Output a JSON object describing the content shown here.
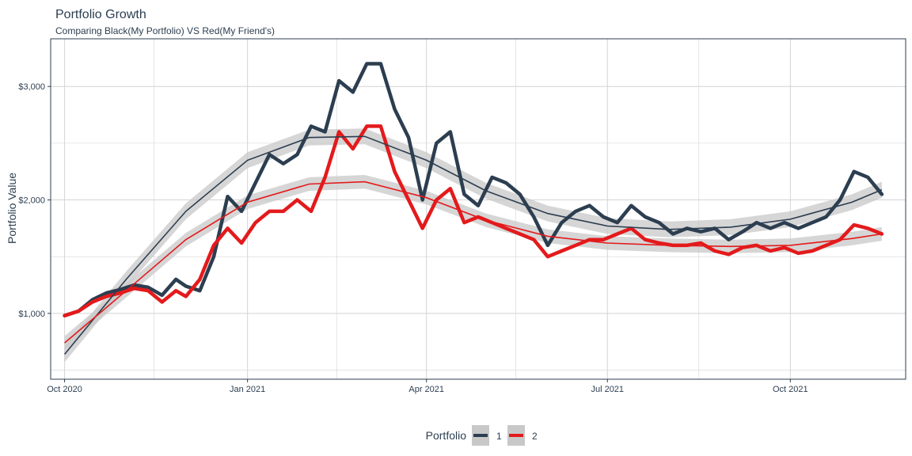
{
  "chart_data": {
    "type": "line",
    "title": "Portfolio Growth",
    "subtitle": "Comparing Black(My Portfolio) VS Red(My Friend's)",
    "xlabel": "",
    "ylabel": "Portfolio Value",
    "x_ticks": [
      "Oct 2020",
      "Jan 2021",
      "Apr 2021",
      "Jul 2021",
      "Oct 2021"
    ],
    "y_ticks": [
      {
        "value": 1000,
        "label": "$1,000"
      },
      {
        "value": 2000,
        "label": "$2,000"
      },
      {
        "value": 3000,
        "label": "$3,000"
      }
    ],
    "ylim": [
      420,
      3420
    ],
    "xlim": [
      "2020-09-24",
      "2021-11-28"
    ],
    "grid": true,
    "legend": {
      "title": "Portfolio",
      "position": "bottom",
      "entries": [
        "1",
        "2"
      ]
    },
    "colors": {
      "series1": "#2c3e50",
      "series2": "#e31a1c",
      "ribbon": "#c8c8c8",
      "grid": "#d4d4d4",
      "border": "#2c3e50"
    },
    "series": [
      {
        "name": "1",
        "values": [
          [
            "2020-10-01",
            980
          ],
          [
            "2020-10-08",
            1020
          ],
          [
            "2020-10-15",
            1120
          ],
          [
            "2020-10-22",
            1180
          ],
          [
            "2020-10-29",
            1210
          ],
          [
            "2020-11-05",
            1250
          ],
          [
            "2020-11-12",
            1230
          ],
          [
            "2020-11-19",
            1160
          ],
          [
            "2020-11-26",
            1300
          ],
          [
            "2020-12-01",
            1240
          ],
          [
            "2020-12-08",
            1200
          ],
          [
            "2020-12-15",
            1500
          ],
          [
            "2020-12-22",
            2030
          ],
          [
            "2020-12-29",
            1900
          ],
          [
            "2021-01-05",
            2150
          ],
          [
            "2021-01-12",
            2400
          ],
          [
            "2021-01-19",
            2320
          ],
          [
            "2021-01-26",
            2400
          ],
          [
            "2021-02-02",
            2650
          ],
          [
            "2021-02-09",
            2600
          ],
          [
            "2021-02-16",
            3050
          ],
          [
            "2021-02-23",
            2950
          ],
          [
            "2021-03-02",
            3200
          ],
          [
            "2021-03-09",
            3200
          ],
          [
            "2021-03-16",
            2800
          ],
          [
            "2021-03-23",
            2550
          ],
          [
            "2021-03-30",
            2000
          ],
          [
            "2021-04-06",
            2500
          ],
          [
            "2021-04-13",
            2600
          ],
          [
            "2021-04-20",
            2050
          ],
          [
            "2021-04-27",
            1950
          ],
          [
            "2021-05-04",
            2200
          ],
          [
            "2021-05-11",
            2150
          ],
          [
            "2021-05-18",
            2050
          ],
          [
            "2021-05-25",
            1850
          ],
          [
            "2021-06-01",
            1600
          ],
          [
            "2021-06-08",
            1800
          ],
          [
            "2021-06-15",
            1900
          ],
          [
            "2021-06-22",
            1950
          ],
          [
            "2021-06-29",
            1850
          ],
          [
            "2021-07-06",
            1800
          ],
          [
            "2021-07-13",
            1950
          ],
          [
            "2021-07-20",
            1850
          ],
          [
            "2021-07-27",
            1800
          ],
          [
            "2021-08-03",
            1700
          ],
          [
            "2021-08-10",
            1750
          ],
          [
            "2021-08-17",
            1720
          ],
          [
            "2021-08-24",
            1750
          ],
          [
            "2021-08-31",
            1650
          ],
          [
            "2021-09-07",
            1720
          ],
          [
            "2021-09-14",
            1800
          ],
          [
            "2021-09-21",
            1750
          ],
          [
            "2021-09-28",
            1800
          ],
          [
            "2021-10-05",
            1750
          ],
          [
            "2021-10-12",
            1800
          ],
          [
            "2021-10-19",
            1850
          ],
          [
            "2021-10-26",
            2000
          ],
          [
            "2021-11-02",
            2250
          ],
          [
            "2021-11-09",
            2200
          ],
          [
            "2021-11-16",
            2050
          ]
        ]
      },
      {
        "name": "2",
        "values": [
          [
            "2020-10-01",
            980
          ],
          [
            "2020-10-08",
            1020
          ],
          [
            "2020-10-15",
            1100
          ],
          [
            "2020-10-22",
            1150
          ],
          [
            "2020-10-29",
            1180
          ],
          [
            "2020-11-05",
            1220
          ],
          [
            "2020-11-12",
            1200
          ],
          [
            "2020-11-19",
            1100
          ],
          [
            "2020-11-26",
            1200
          ],
          [
            "2020-12-01",
            1150
          ],
          [
            "2020-12-08",
            1300
          ],
          [
            "2020-12-15",
            1600
          ],
          [
            "2020-12-22",
            1750
          ],
          [
            "2020-12-29",
            1620
          ],
          [
            "2021-01-05",
            1800
          ],
          [
            "2021-01-12",
            1900
          ],
          [
            "2021-01-19",
            1900
          ],
          [
            "2021-01-26",
            2000
          ],
          [
            "2021-02-02",
            1900
          ],
          [
            "2021-02-09",
            2200
          ],
          [
            "2021-02-16",
            2600
          ],
          [
            "2021-02-23",
            2450
          ],
          [
            "2021-03-02",
            2650
          ],
          [
            "2021-03-09",
            2650
          ],
          [
            "2021-03-16",
            2250
          ],
          [
            "2021-03-23",
            2000
          ],
          [
            "2021-03-30",
            1750
          ],
          [
            "2021-04-06",
            2000
          ],
          [
            "2021-04-13",
            2100
          ],
          [
            "2021-04-20",
            1800
          ],
          [
            "2021-04-27",
            1850
          ],
          [
            "2021-05-04",
            1800
          ],
          [
            "2021-05-11",
            1750
          ],
          [
            "2021-05-18",
            1700
          ],
          [
            "2021-05-25",
            1650
          ],
          [
            "2021-06-01",
            1500
          ],
          [
            "2021-06-08",
            1550
          ],
          [
            "2021-06-15",
            1600
          ],
          [
            "2021-06-22",
            1650
          ],
          [
            "2021-06-29",
            1650
          ],
          [
            "2021-07-06",
            1700
          ],
          [
            "2021-07-13",
            1750
          ],
          [
            "2021-07-20",
            1650
          ],
          [
            "2021-07-27",
            1620
          ],
          [
            "2021-08-03",
            1600
          ],
          [
            "2021-08-10",
            1600
          ],
          [
            "2021-08-17",
            1620
          ],
          [
            "2021-08-24",
            1550
          ],
          [
            "2021-08-31",
            1520
          ],
          [
            "2021-09-07",
            1580
          ],
          [
            "2021-09-14",
            1600
          ],
          [
            "2021-09-21",
            1550
          ],
          [
            "2021-09-28",
            1580
          ],
          [
            "2021-10-05",
            1530
          ],
          [
            "2021-10-12",
            1550
          ],
          [
            "2021-10-19",
            1600
          ],
          [
            "2021-10-26",
            1650
          ],
          [
            "2021-11-02",
            1780
          ],
          [
            "2021-11-09",
            1750
          ],
          [
            "2021-11-16",
            1700
          ]
        ]
      }
    ],
    "smooth": [
      {
        "name": "1",
        "values": [
          [
            "2020-10-01",
            640
          ],
          [
            "2020-11-01",
            1300
          ],
          [
            "2020-12-01",
            1900
          ],
          [
            "2021-01-01",
            2350
          ],
          [
            "2021-02-01",
            2550
          ],
          [
            "2021-03-01",
            2560
          ],
          [
            "2021-04-01",
            2350
          ],
          [
            "2021-05-01",
            2080
          ],
          [
            "2021-06-01",
            1880
          ],
          [
            "2021-07-01",
            1770
          ],
          [
            "2021-08-01",
            1740
          ],
          [
            "2021-09-01",
            1760
          ],
          [
            "2021-10-01",
            1830
          ],
          [
            "2021-11-01",
            1980
          ],
          [
            "2021-11-16",
            2090
          ]
        ],
        "band": 70
      },
      {
        "name": "2",
        "values": [
          [
            "2020-10-01",
            740
          ],
          [
            "2020-11-01",
            1200
          ],
          [
            "2020-12-01",
            1650
          ],
          [
            "2021-01-01",
            1980
          ],
          [
            "2021-02-01",
            2140
          ],
          [
            "2021-03-01",
            2160
          ],
          [
            "2021-04-01",
            2020
          ],
          [
            "2021-05-01",
            1820
          ],
          [
            "2021-06-01",
            1680
          ],
          [
            "2021-07-01",
            1620
          ],
          [
            "2021-08-01",
            1600
          ],
          [
            "2021-09-01",
            1590
          ],
          [
            "2021-10-01",
            1600
          ],
          [
            "2021-11-01",
            1660
          ],
          [
            "2021-11-16",
            1700
          ]
        ],
        "band": 60
      }
    ]
  }
}
